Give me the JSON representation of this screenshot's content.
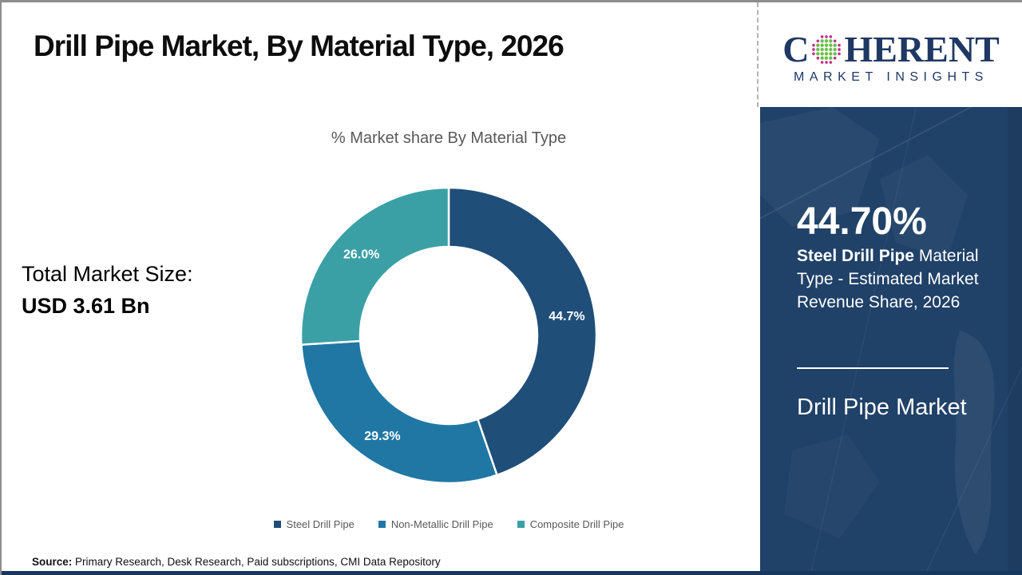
{
  "header": {
    "title": "Drill Pipe Market, By Material Type, 2026"
  },
  "logo": {
    "brand_prefix": "C",
    "brand_suffix": "HERENT",
    "subtitle": "MARKET INSIGHTS",
    "navy": "#1f3864",
    "dot_inner": "#6abf4b",
    "dot_outer": "#c2308f"
  },
  "chart_data": {
    "type": "pie",
    "subtype": "donut",
    "title": "% Market share By Material Type",
    "categories": [
      "Steel Drill Pipe",
      "Non-Metallic Drill Pipe",
      "Composite Drill Pipe"
    ],
    "values": [
      44.7,
      29.3,
      26.0
    ],
    "labels": [
      "44.7%",
      "29.3%",
      "26.0%"
    ],
    "colors": [
      "#1f4e79",
      "#2077a4",
      "#3aa0a5"
    ],
    "start_angle_deg": 0,
    "direction": "clockwise",
    "inner_radius_ratio": 0.6,
    "legend_position": "bottom",
    "label_color": "#ffffff"
  },
  "stats": {
    "total_label": "Total Market Size:",
    "total_value": "USD 3.61 Bn"
  },
  "panel": {
    "stat_value": "44.70%",
    "stat_line_bold": "Steel Drill Pipe",
    "stat_line_rest": " Material Type - Estimated Market Revenue Share, 2026",
    "market_name": "Drill Pipe Market",
    "background": "#204168"
  },
  "footer": {
    "source_label": "Source:",
    "source_text": " Primary Research, Desk Research, Paid subscriptions, CMI Data Repository"
  },
  "theme": {
    "title_black": "#0d0d0d",
    "text_gray": "#595959",
    "bottom_strip": "#17375e"
  }
}
